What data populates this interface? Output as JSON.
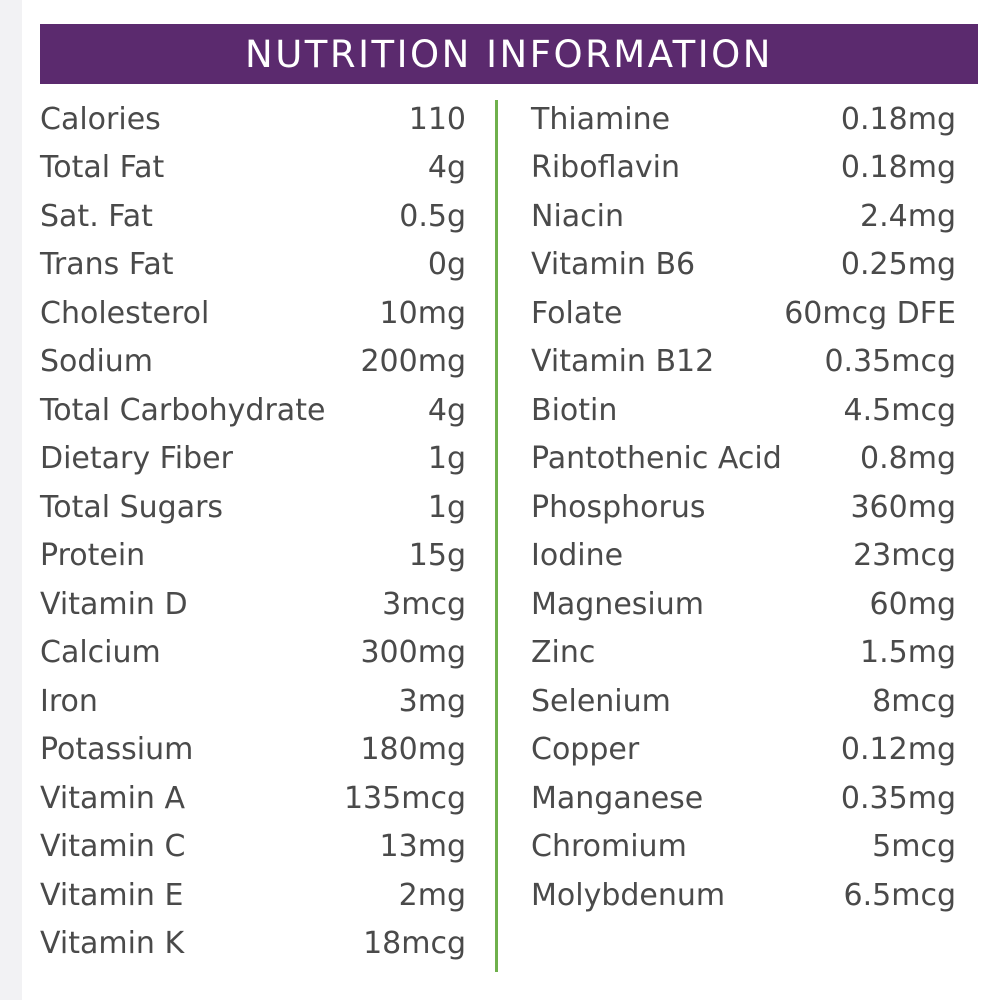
{
  "header": {
    "title": "NUTRITION INFORMATION"
  },
  "colors": {
    "header_bg": "#5b2a6e",
    "header_text": "#ffffff",
    "divider": "#6fb04c",
    "text": "#4a4a4a"
  },
  "left_column": [
    {
      "name": "Calories",
      "value": "110"
    },
    {
      "name": "Total Fat",
      "value": "4g"
    },
    {
      "name": "Sat. Fat",
      "value": "0.5g"
    },
    {
      "name": "Trans Fat",
      "value": "0g"
    },
    {
      "name": "Cholesterol",
      "value": "10mg"
    },
    {
      "name": "Sodium",
      "value": "200mg"
    },
    {
      "name": "Total Carbohydrate",
      "value": "4g"
    },
    {
      "name": "Dietary Fiber",
      "value": "1g"
    },
    {
      "name": "Total Sugars",
      "value": "1g"
    },
    {
      "name": "Protein",
      "value": "15g"
    },
    {
      "name": "Vitamin D",
      "value": "3mcg"
    },
    {
      "name": "Calcium",
      "value": "300mg"
    },
    {
      "name": "Iron",
      "value": "3mg"
    },
    {
      "name": "Potassium",
      "value": "180mg"
    },
    {
      "name": "Vitamin A",
      "value": "135mcg"
    },
    {
      "name": "Vitamin C",
      "value": "13mg"
    },
    {
      "name": "Vitamin E",
      "value": "2mg"
    },
    {
      "name": "Vitamin K",
      "value": "18mcg"
    }
  ],
  "right_column": [
    {
      "name": "Thiamine",
      "value": "0.18mg"
    },
    {
      "name": "Riboflavin",
      "value": "0.18mg"
    },
    {
      "name": "Niacin",
      "value": "2.4mg"
    },
    {
      "name": "Vitamin B6",
      "value": "0.25mg"
    },
    {
      "name": "Folate",
      "value": "60mcg DFE"
    },
    {
      "name": "Vitamin B12",
      "value": "0.35mcg"
    },
    {
      "name": "Biotin",
      "value": "4.5mcg"
    },
    {
      "name": "Pantothenic Acid",
      "value": "0.8mg"
    },
    {
      "name": "Phosphorus",
      "value": "360mg"
    },
    {
      "name": "Iodine",
      "value": "23mcg"
    },
    {
      "name": "Magnesium",
      "value": "60mg"
    },
    {
      "name": "Zinc",
      "value": "1.5mg"
    },
    {
      "name": "Selenium",
      "value": "8mcg"
    },
    {
      "name": "Copper",
      "value": "0.12mg"
    },
    {
      "name": "Manganese",
      "value": "0.35mg"
    },
    {
      "name": "Chromium",
      "value": "5mcg"
    },
    {
      "name": "Molybdenum",
      "value": "6.5mcg"
    }
  ]
}
